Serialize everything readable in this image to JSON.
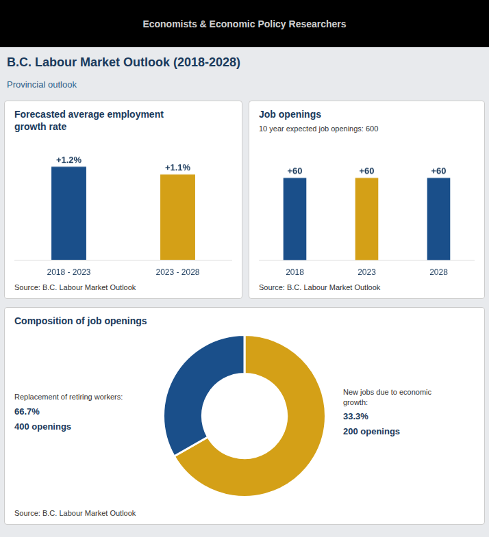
{
  "title": "B.C. Labour Market Outlook (2018-2028)",
  "subtitle": "Provincial outlook",
  "annotations": [
    "Economists & Economic Policy Researchers"
  ],
  "chart_data": [
    {
      "type": "bar",
      "title": "Forecasted average employment\ngrowth rate",
      "categories": [
        "2018 - 2023",
        "2023 - 2028"
      ],
      "values": [
        1.2,
        1.1
      ],
      "value_labels": [
        "+1.2%",
        "+1.1%"
      ],
      "colors": [
        "#1a4f8a",
        "#d4a017"
      ],
      "ylim": [
        0,
        1.55
      ],
      "grid": false,
      "tick_labels": "x",
      "data_labels": true,
      "annotations": [
        "Source: B.C. Labour Market Outlook"
      ]
    },
    {
      "type": "bar",
      "title": "Job openings",
      "subtitle": "10 year expected job openings: 600",
      "categories": [
        "2018",
        "2023",
        "2028"
      ],
      "values": [
        60,
        60,
        60
      ],
      "value_labels": [
        "+60",
        "+60",
        "+60"
      ],
      "colors": [
        "#1a4f8a",
        "#d4a017",
        "#1a4f8a"
      ],
      "ylim": [
        0,
        88
      ],
      "grid": false,
      "tick_labels": "x",
      "data_labels": true,
      "annotations": [
        "Source: B.C. Labour Market Outlook"
      ]
    },
    {
      "type": "doughnut",
      "title": "Composition of job openings",
      "categories": [
        "Replacement of retiring workers:",
        "New jobs due to economic\ngrowth:"
      ],
      "values": [
        66.7,
        33.3
      ],
      "value_labels": [
        "66.7%",
        "33.3%"
      ],
      "colors": [
        "#d4a017",
        "#1a4f8a"
      ],
      "data_labels": true,
      "annotations": [
        "400 openings",
        "200 openings",
        "Source: B.C. Labour Market Outlook"
      ]
    }
  ]
}
